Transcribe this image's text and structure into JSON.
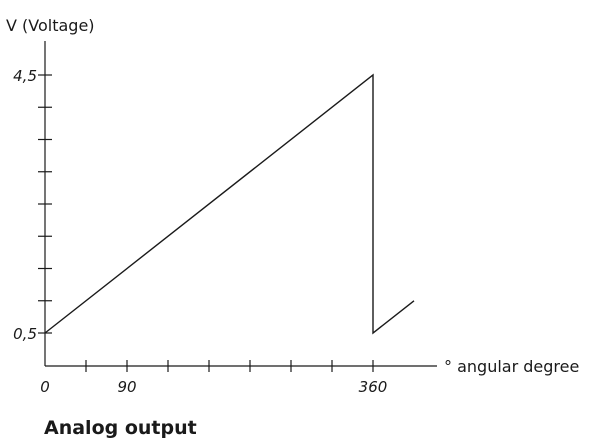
{
  "chart_data": {
    "type": "line",
    "title": "Analog output",
    "ylabel": "V (Voltage)",
    "xlabel": "° angular degree",
    "x_ticks": [
      0,
      45,
      90,
      135,
      180,
      225,
      270,
      315,
      360
    ],
    "x_tick_labels": [
      {
        "x": 0,
        "label": "0"
      },
      {
        "x": 90,
        "label": "90"
      },
      {
        "x": 360,
        "label": "360"
      }
    ],
    "y_ticks": [
      0.5,
      1.0,
      1.5,
      2.0,
      2.5,
      3.0,
      3.5,
      4.0,
      4.5
    ],
    "y_tick_labels": [
      {
        "y": 0.5,
        "label": "0,5"
      },
      {
        "y": 4.5,
        "label": "4,5"
      }
    ],
    "xlim": [
      0,
      405
    ],
    "ylim": [
      0,
      4.5
    ],
    "series": [
      {
        "points": [
          {
            "x": 0,
            "y": 0.5
          },
          {
            "x": 360,
            "y": 4.5
          },
          {
            "x": 360,
            "y": 0.5
          },
          {
            "x": 405,
            "y": 1.0
          }
        ]
      }
    ],
    "grid": false,
    "color": "#1a1a1a"
  }
}
